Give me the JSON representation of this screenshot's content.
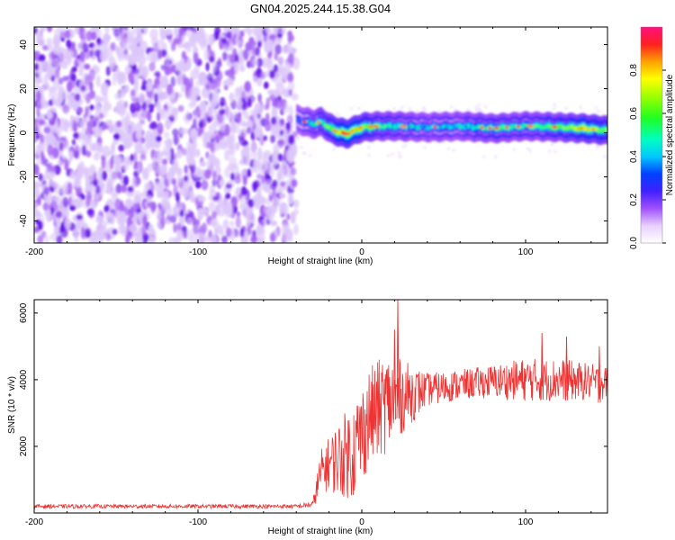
{
  "title": "GN04.2025.244.15.38.G04",
  "chart_data": [
    {
      "type": "heatmap",
      "name": "spectrogram",
      "xlabel": "Height of straight line (km)",
      "ylabel": "Frequency (Hz)",
      "xlim": [
        -200,
        150
      ],
      "ylim": [
        -50,
        48
      ],
      "xticks": [
        -200,
        -100,
        0,
        100
      ],
      "yticks": [
        -40,
        -20,
        0,
        20,
        40
      ],
      "noise_region_x": [
        -200,
        -40
      ],
      "noise_amplitude": 0.15,
      "ridge": [
        {
          "x": -40,
          "f": 6.0,
          "a": 0.3
        },
        {
          "x": -30,
          "f": 4.0,
          "a": 0.45
        },
        {
          "x": -25,
          "f": 5.0,
          "a": 0.55
        },
        {
          "x": -20,
          "f": 2.0,
          "a": 0.6
        },
        {
          "x": -15,
          "f": 0.5,
          "a": 0.75
        },
        {
          "x": -10,
          "f": -0.5,
          "a": 0.85
        },
        {
          "x": -5,
          "f": 1.0,
          "a": 0.8
        },
        {
          "x": 0,
          "f": 2.5,
          "a": 0.7
        },
        {
          "x": 10,
          "f": 3.0,
          "a": 0.55
        },
        {
          "x": 20,
          "f": 3.0,
          "a": 0.5
        },
        {
          "x": 40,
          "f": 2.5,
          "a": 0.4
        },
        {
          "x": 60,
          "f": 3.0,
          "a": 0.45
        },
        {
          "x": 80,
          "f": 2.0,
          "a": 0.55
        },
        {
          "x": 100,
          "f": 3.0,
          "a": 0.5
        },
        {
          "x": 120,
          "f": 2.5,
          "a": 0.6
        },
        {
          "x": 135,
          "f": 2.0,
          "a": 0.75
        },
        {
          "x": 150,
          "f": 1.0,
          "a": 0.6
        }
      ],
      "colorbar": {
        "label": "Normalized spectral amplitude",
        "range": [
          0,
          1
        ],
        "ticks": [
          0.0,
          0.2,
          0.4,
          0.6,
          0.8
        ],
        "tick_labels": [
          "0.0",
          "0.2",
          "0.4",
          "0.6",
          "0.8"
        ]
      }
    },
    {
      "type": "line",
      "name": "snr",
      "xlabel": "Height of straight line (km)",
      "ylabel": "SNR (10 * v/v)",
      "xlim": [
        -200,
        150
      ],
      "ylim": [
        0,
        6400
      ],
      "xticks": [
        -200,
        -100,
        0,
        100
      ],
      "yticks": [
        2000,
        4000,
        6000
      ],
      "color": "#ee3333",
      "envelope": [
        {
          "x": -200,
          "mean": 200,
          "spread": 60
        },
        {
          "x": -40,
          "mean": 200,
          "spread": 60
        },
        {
          "x": -30,
          "mean": 250,
          "spread": 100
        },
        {
          "x": -25,
          "mean": 1200,
          "spread": 700
        },
        {
          "x": -20,
          "mean": 1500,
          "spread": 800
        },
        {
          "x": -15,
          "mean": 1600,
          "spread": 1100
        },
        {
          "x": -5,
          "mean": 1900,
          "spread": 1500
        },
        {
          "x": 5,
          "mean": 2900,
          "spread": 1500
        },
        {
          "x": 15,
          "mean": 3300,
          "spread": 1500
        },
        {
          "x": 25,
          "mean": 3500,
          "spread": 1100
        },
        {
          "x": 40,
          "mean": 3700,
          "spread": 500
        },
        {
          "x": 60,
          "mean": 3850,
          "spread": 450
        },
        {
          "x": 80,
          "mean": 3950,
          "spread": 500
        },
        {
          "x": 100,
          "mean": 4000,
          "spread": 650
        },
        {
          "x": 120,
          "mean": 4000,
          "spread": 650
        },
        {
          "x": 150,
          "mean": 3900,
          "spread": 500
        }
      ],
      "peaks": [
        {
          "x": 22,
          "y": 6400
        },
        {
          "x": 20,
          "y": 5500
        },
        {
          "x": 110,
          "y": 5400
        },
        {
          "x": 125,
          "y": 5300
        },
        {
          "x": 145,
          "y": 5000
        }
      ]
    }
  ]
}
